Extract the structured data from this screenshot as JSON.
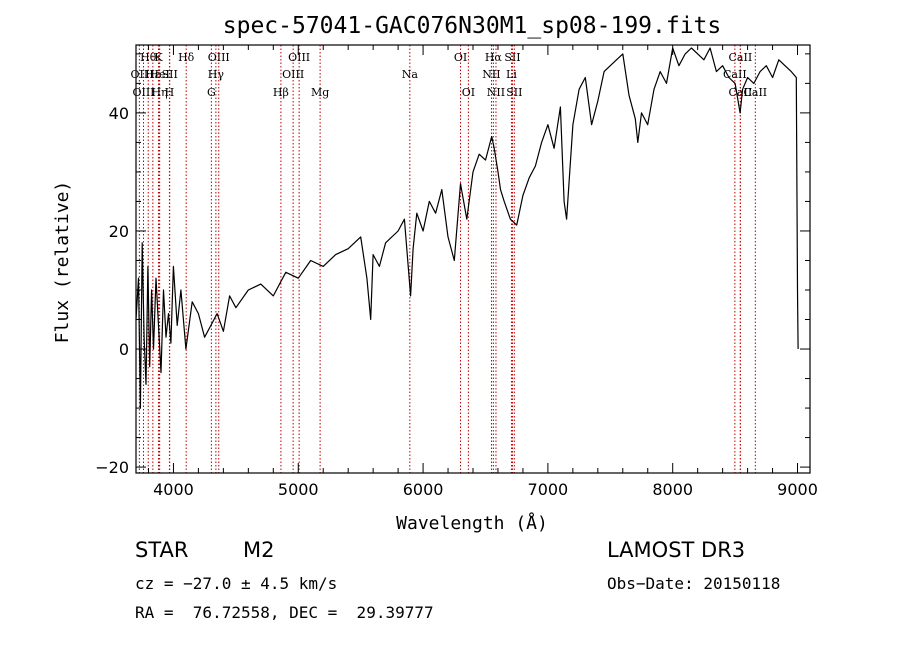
{
  "chart_data": {
    "type": "line",
    "title": "spec-57041-GAC076N30M1_sp08-199.fits",
    "xlabel": "Wavelength (Å)",
    "ylabel": "Flux (relative)",
    "xlim": [
      3700,
      9100
    ],
    "ylim": [
      -21,
      51.5
    ],
    "xticks": [
      4000,
      5000,
      6000,
      7000,
      8000,
      9000
    ],
    "xtick_labels": [
      "4000",
      "5000",
      "6000",
      "7000",
      "8000",
      "9000"
    ],
    "yticks": [
      -20,
      0,
      20,
      40
    ],
    "ytick_labels": [
      "−20",
      "0",
      "20",
      "40"
    ],
    "grid": false,
    "legend": "none",
    "series": [
      {
        "name": "flux",
        "x": [
          3700,
          3720,
          3735,
          3750,
          3765,
          3780,
          3795,
          3810,
          3825,
          3840,
          3860,
          3880,
          3900,
          3920,
          3940,
          3960,
          3980,
          4000,
          4030,
          4060,
          4100,
          4150,
          4200,
          4250,
          4300,
          4350,
          4400,
          4450,
          4500,
          4600,
          4700,
          4800,
          4900,
          5000,
          5100,
          5200,
          5300,
          5400,
          5500,
          5550,
          5580,
          5600,
          5650,
          5700,
          5800,
          5850,
          5900,
          5920,
          5950,
          6000,
          6050,
          6100,
          6150,
          6200,
          6250,
          6300,
          6350,
          6400,
          6450,
          6500,
          6550,
          6570,
          6600,
          6620,
          6650,
          6700,
          6750,
          6800,
          6850,
          6900,
          6950,
          7000,
          7050,
          7100,
          7130,
          7150,
          7200,
          7250,
          7300,
          7350,
          7400,
          7450,
          7500,
          7550,
          7600,
          7650,
          7700,
          7720,
          7750,
          7800,
          7850,
          7900,
          7950,
          8000,
          8050,
          8100,
          8150,
          8200,
          8250,
          8300,
          8350,
          8400,
          8450,
          8500,
          8540,
          8560,
          8600,
          8650,
          8700,
          8750,
          8800,
          8850,
          8900,
          8950,
          8990,
          9000,
          9005
        ],
        "y": [
          5,
          12,
          -10,
          18,
          2,
          -6,
          14,
          -3,
          10,
          0,
          12,
          4,
          -4,
          10,
          2,
          6,
          1,
          14,
          4,
          10,
          0,
          8,
          6,
          2,
          4,
          6,
          3,
          9,
          7,
          10,
          11,
          9,
          13,
          12,
          15,
          14,
          16,
          17,
          19,
          12,
          5,
          16,
          14,
          18,
          20,
          22,
          9,
          17,
          23,
          20,
          25,
          23,
          27,
          19,
          15,
          28,
          22,
          30,
          33,
          32,
          36,
          34,
          30,
          27,
          25,
          22,
          21,
          26,
          29,
          31,
          35,
          38,
          34,
          41,
          25,
          22,
          38,
          44,
          46,
          38,
          42,
          47,
          48,
          49,
          50,
          43,
          39,
          35,
          40,
          38,
          44,
          47,
          45,
          51,
          48,
          50,
          51,
          50,
          49,
          51,
          47,
          48,
          46,
          45,
          40,
          44,
          46,
          45,
          47,
          48,
          46,
          49,
          48,
          47,
          46,
          10,
          0
        ]
      }
    ],
    "lines": [
      {
        "label": "Hθ",
        "x": 3798,
        "row": 1
      },
      {
        "label": "OII",
        "x": 3727,
        "row": 2
      },
      {
        "label": "OIII",
        "x": 3760,
        "row": 3
      },
      {
        "label": "Hε",
        "x": 3835,
        "row": 2
      },
      {
        "label": "K",
        "x": 3880,
        "row": 1
      },
      {
        "label": "HeI",
        "x": 3889,
        "row": 2
      },
      {
        "label": "Hη",
        "x": 3889,
        "row": 3
      },
      {
        "label": "SII",
        "x": 3970,
        "row": 2
      },
      {
        "label": "H",
        "x": 3968,
        "row": 3
      },
      {
        "label": "Hδ",
        "x": 4102,
        "row": 1
      },
      {
        "label": "OIII",
        "x": 4363,
        "row": 1
      },
      {
        "label": "Hγ",
        "x": 4340,
        "row": 2
      },
      {
        "label": "G",
        "x": 4304,
        "row": 3
      },
      {
        "label": "Hβ",
        "x": 4861,
        "row": 3
      },
      {
        "label": "OIII",
        "x": 5007,
        "row": 1
      },
      {
        "label": "OIII",
        "x": 4959,
        "row": 2
      },
      {
        "label": "Mg",
        "x": 5175,
        "row": 3
      },
      {
        "label": "Na",
        "x": 5894,
        "row": 2
      },
      {
        "label": "OI",
        "x": 6300,
        "row": 1
      },
      {
        "label": "OI",
        "x": 6363,
        "row": 3
      },
      {
        "label": "Hα",
        "x": 6563,
        "row": 1
      },
      {
        "label": "SII",
        "x": 6716,
        "row": 1
      },
      {
        "label": "NII",
        "x": 6548,
        "row": 2
      },
      {
        "label": "Li",
        "x": 6708,
        "row": 2
      },
      {
        "label": "NII",
        "x": 6584,
        "row": 3
      },
      {
        "label": "SII",
        "x": 6731,
        "row": 3
      },
      {
        "label": "CaII",
        "x": 8542,
        "row": 1
      },
      {
        "label": "CaII",
        "x": 8498,
        "row": 2
      },
      {
        "label": "CaII",
        "x": 8542,
        "row": 3
      },
      {
        "label": "CaII",
        "x": 8662,
        "row": 3
      }
    ],
    "colors": {
      "spectrum": "#000000",
      "lines": "#c00000",
      "axes": "#000000"
    }
  },
  "info": {
    "object": "STAR",
    "subclass": "M2",
    "survey": "LAMOST DR3",
    "cz": "cz = −27.0 ± 4.5 km/s",
    "obs_date": "Obs−Date: 20150118",
    "coords": "RA =  76.72558, DEC =  29.39777"
  }
}
